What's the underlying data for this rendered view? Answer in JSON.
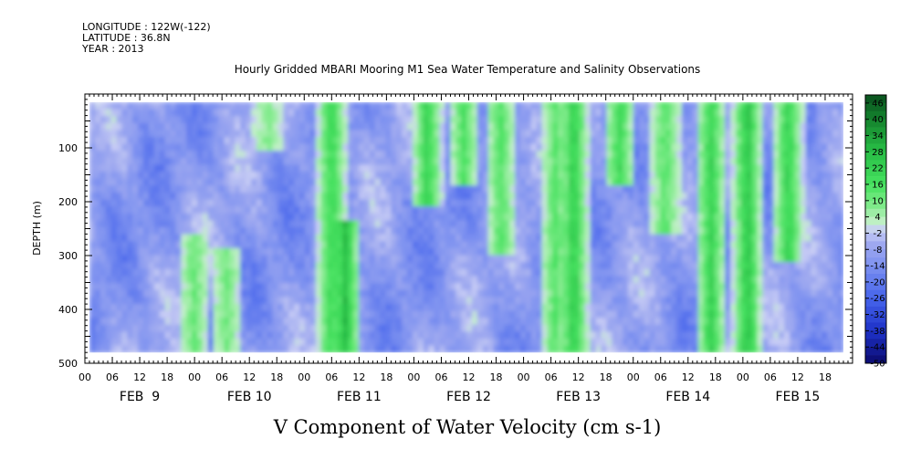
{
  "header": {
    "longitude": "LONGITUDE : 122W(-122)",
    "latitude": "LATITUDE : 36.8N",
    "year": "YEAR : 2013"
  },
  "chart_data": {
    "type": "heatmap",
    "title": "Hourly Gridded MBARI Mooring M1 Sea Water Temperature and Salinity Observations",
    "xlabel": "V Component of Water Velocity (cm s-1)",
    "ylabel": "DEPTH (m)",
    "y_axis": {
      "range": [
        0,
        500
      ],
      "inverted": true,
      "ticks": [
        100,
        200,
        300,
        400,
        500
      ],
      "tick_labels": [
        "100",
        "200",
        "300",
        "400",
        "500"
      ]
    },
    "x_axis": {
      "range_hours": [
        0,
        168
      ],
      "hour_tick_labels": [
        "00",
        "06",
        "12",
        "18",
        "00",
        "06",
        "12",
        "18",
        "00",
        "06",
        "12",
        "18",
        "00",
        "06",
        "12",
        "18",
        "00",
        "06",
        "12",
        "18",
        "00",
        "06",
        "12",
        "18",
        "00",
        "06",
        "12",
        "18"
      ],
      "date_labels": [
        "FEB  9",
        "FEB 10",
        "FEB 11",
        "FEB 12",
        "FEB 13",
        "FEB 14",
        "FEB 15"
      ]
    },
    "data_extent": {
      "x_hours": [
        1,
        166
      ],
      "depth": [
        15,
        480
      ]
    },
    "colorbar": {
      "labels": [
        "46",
        "40",
        "34",
        "28",
        "22",
        "16",
        "10",
        "4",
        "-2",
        "-8",
        "-14",
        "-20",
        "-26",
        "-32",
        "-38",
        "-44",
        "-50"
      ],
      "range": [
        -50,
        49
      ]
    },
    "green_bands": [
      {
        "x_hours": 24,
        "depth": [
          280,
          480
        ],
        "v": 12
      },
      {
        "x_hours": 31,
        "depth": [
          300,
          480
        ],
        "v": 10
      },
      {
        "x_hours": 40,
        "depth": [
          30,
          90
        ],
        "v": 8
      },
      {
        "x_hours": 54,
        "depth": [
          15,
          480
        ],
        "v": 20
      },
      {
        "x_hours": 57,
        "depth": [
          250,
          480
        ],
        "v": 28
      },
      {
        "x_hours": 75,
        "depth": [
          15,
          200
        ],
        "v": 22
      },
      {
        "x_hours": 83,
        "depth": [
          15,
          160
        ],
        "v": 16
      },
      {
        "x_hours": 91,
        "depth": [
          15,
          280
        ],
        "v": 14
      },
      {
        "x_hours": 103,
        "depth": [
          15,
          480
        ],
        "v": 14
      },
      {
        "x_hours": 107,
        "depth": [
          15,
          480
        ],
        "v": 24
      },
      {
        "x_hours": 117,
        "depth": [
          15,
          150
        ],
        "v": 20
      },
      {
        "x_hours": 127,
        "depth": [
          15,
          250
        ],
        "v": 14
      },
      {
        "x_hours": 137,
        "depth": [
          15,
          480
        ],
        "v": 22
      },
      {
        "x_hours": 145,
        "depth": [
          15,
          480
        ],
        "v": 26
      },
      {
        "x_hours": 154,
        "depth": [
          15,
          300
        ],
        "v": 22
      }
    ]
  }
}
